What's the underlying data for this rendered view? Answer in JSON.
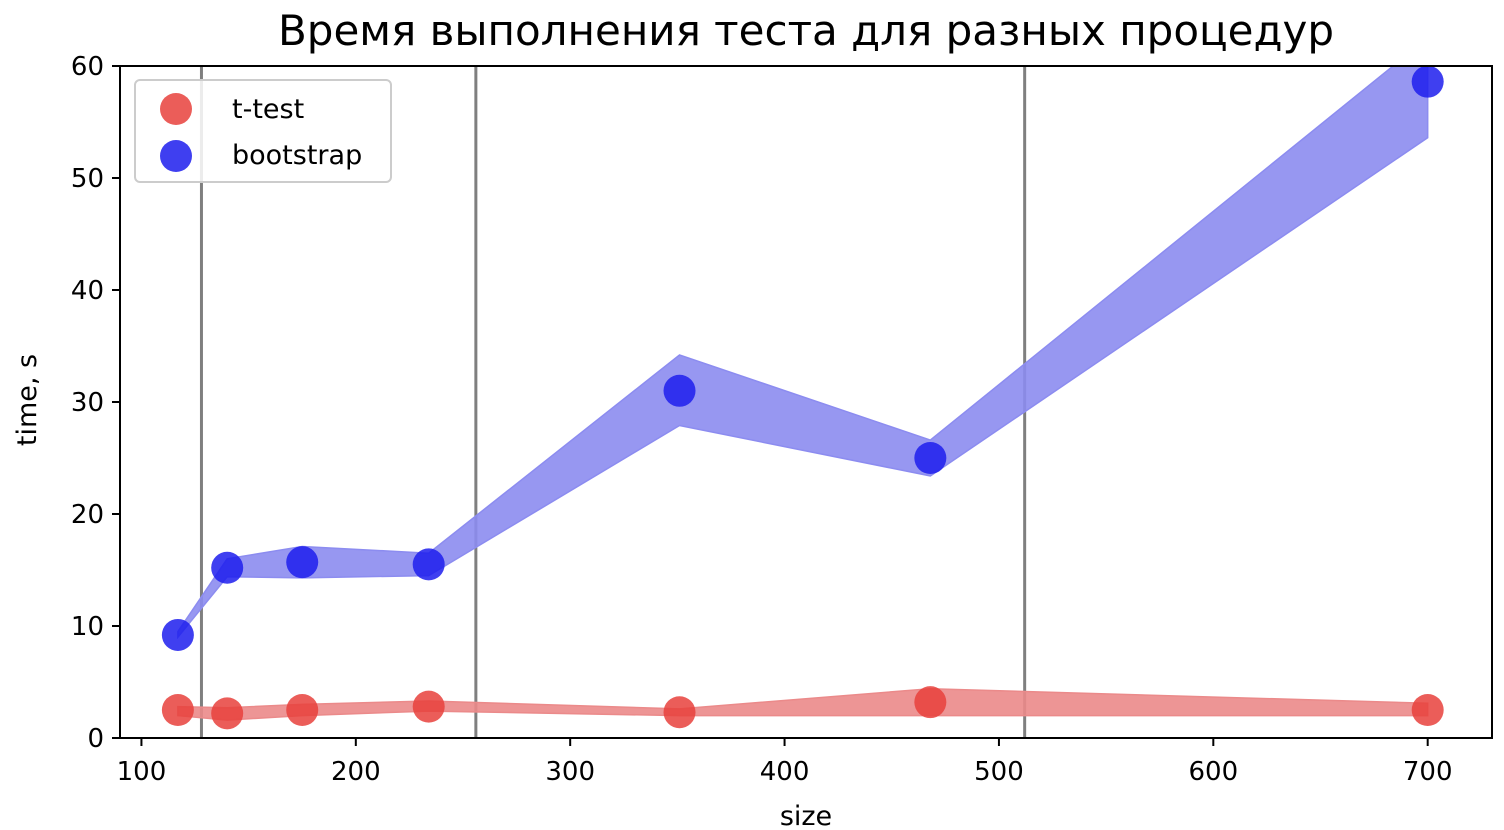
{
  "chart_data": {
    "type": "scatter",
    "title": "Время выполнения теста для разных процедур",
    "xlabel": "size",
    "ylabel": "time, s",
    "xlim": [
      90,
      730
    ],
    "ylim": [
      0,
      60
    ],
    "xticks": [
      100,
      200,
      300,
      400,
      500,
      600,
      700
    ],
    "yticks": [
      0,
      10,
      20,
      30,
      40,
      50,
      60
    ],
    "vlines": [
      128,
      256,
      512
    ],
    "legend_position": "upper-left",
    "grid": false,
    "series": [
      {
        "name": "t-test",
        "color": "#e8413c",
        "band_color": "#eb8a8a",
        "x": [
          117,
          140,
          175,
          234,
          351,
          468,
          700
        ],
        "y": [
          2.5,
          2.2,
          2.5,
          2.8,
          2.3,
          3.2,
          2.5
        ],
        "band_lower": [
          2.0,
          1.6,
          2.0,
          2.4,
          2.0,
          2.0,
          2.0
        ],
        "band_upper": [
          2.8,
          2.7,
          3.0,
          3.3,
          2.6,
          4.4,
          3.1
        ]
      },
      {
        "name": "bootstrap",
        "color": "#1d1ded",
        "band_color": "#8c8cf0",
        "x": [
          117,
          140,
          175,
          234,
          351,
          468,
          700
        ],
        "y": [
          9.2,
          15.2,
          15.7,
          15.5,
          31.0,
          25.0,
          58.6
        ],
        "band_lower": [
          9.0,
          14.4,
          14.3,
          14.5,
          27.9,
          23.4,
          53.6
        ],
        "band_upper": [
          9.5,
          16.0,
          17.1,
          16.5,
          34.2,
          26.6,
          62.5
        ]
      }
    ]
  }
}
